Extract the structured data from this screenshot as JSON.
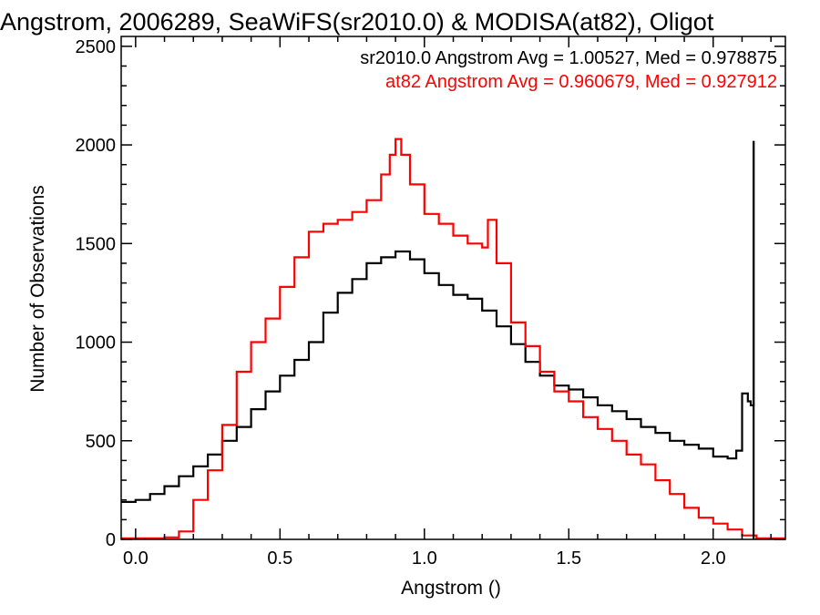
{
  "chart_data": {
    "type": "line",
    "title": "Angstrom, 2006289, SeaWiFS(sr2010.0) & MODISA(at82), Oligot",
    "xlabel": "Angstrom ()",
    "ylabel": "Number of Observations",
    "xlim": [
      -0.05,
      2.25
    ],
    "ylim": [
      0,
      2550
    ],
    "x_ticks": [
      0.0,
      0.5,
      1.0,
      1.5,
      2.0
    ],
    "x_tick_labels": [
      "0.0",
      "0.5",
      "1.0",
      "1.5",
      "2.0"
    ],
    "y_ticks": [
      0,
      500,
      1000,
      1500,
      2000,
      2500
    ],
    "y_tick_labels": [
      "0",
      "500",
      "1000",
      "1500",
      "2000",
      "2500"
    ],
    "grid": false,
    "annotations": [
      {
        "text": "sr2010.0 Angstrom Avg = 1.00527, Med = 0.978875",
        "color": "#000000"
      },
      {
        "text": "at82 Angstrom Avg = 0.960679, Med = 0.927912",
        "color": "#ff0000"
      }
    ],
    "series": [
      {
        "color": "#000000",
        "x": [
          -0.05,
          0.0,
          0.05,
          0.1,
          0.15,
          0.2,
          0.25,
          0.3,
          0.35,
          0.4,
          0.45,
          0.5,
          0.55,
          0.6,
          0.65,
          0.7,
          0.75,
          0.8,
          0.85,
          0.9,
          0.95,
          1.0,
          1.05,
          1.1,
          1.15,
          1.2,
          1.25,
          1.3,
          1.35,
          1.4,
          1.45,
          1.5,
          1.55,
          1.6,
          1.65,
          1.7,
          1.75,
          1.8,
          1.85,
          1.9,
          1.95,
          2.0,
          2.05,
          2.08,
          2.1,
          2.12,
          2.13,
          2.14
        ],
        "y": [
          190,
          200,
          230,
          270,
          320,
          370,
          430,
          500,
          570,
          660,
          750,
          830,
          910,
          1000,
          1150,
          1250,
          1320,
          1400,
          1430,
          1460,
          1420,
          1350,
          1290,
          1240,
          1220,
          1160,
          1080,
          990,
          900,
          830,
          780,
          760,
          720,
          680,
          650,
          610,
          570,
          540,
          500,
          480,
          460,
          420,
          410,
          450,
          740,
          700,
          680,
          2020
        ]
      },
      {
        "color": "#ff0000",
        "x": [
          -0.05,
          0.1,
          0.15,
          0.2,
          0.25,
          0.3,
          0.35,
          0.4,
          0.45,
          0.5,
          0.55,
          0.6,
          0.65,
          0.7,
          0.75,
          0.8,
          0.85,
          0.88,
          0.9,
          0.92,
          0.95,
          1.0,
          1.05,
          1.1,
          1.15,
          1.2,
          1.22,
          1.25,
          1.3,
          1.35,
          1.4,
          1.45,
          1.5,
          1.55,
          1.6,
          1.65,
          1.7,
          1.75,
          1.8,
          1.85,
          1.9,
          1.95,
          2.0,
          2.05,
          2.1,
          2.15,
          2.25
        ],
        "y": [
          5,
          10,
          40,
          200,
          350,
          580,
          850,
          1000,
          1120,
          1280,
          1430,
          1560,
          1600,
          1620,
          1660,
          1720,
          1850,
          1950,
          2030,
          1950,
          1800,
          1650,
          1600,
          1540,
          1500,
          1480,
          1620,
          1400,
          1100,
          980,
          850,
          750,
          700,
          620,
          560,
          500,
          430,
          380,
          300,
          230,
          160,
          110,
          80,
          50,
          20,
          5,
          5
        ]
      }
    ]
  }
}
